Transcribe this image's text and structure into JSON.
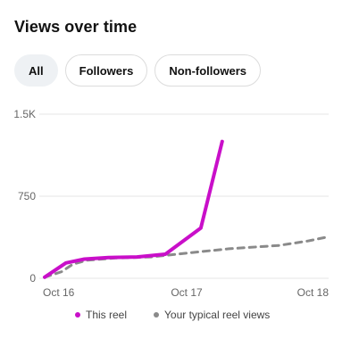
{
  "header": {
    "title": "Views over time"
  },
  "filters": [
    {
      "label": "All",
      "active": true
    },
    {
      "label": "Followers",
      "active": false
    },
    {
      "label": "Non-followers",
      "active": false
    }
  ],
  "colors": {
    "this_reel": "#c90fc9",
    "typical": "#8a8a8a",
    "grid": "#e6e6e6",
    "axis_text": "#666666"
  },
  "chart_data": {
    "type": "line",
    "y_ticks": [
      {
        "value": 0,
        "label": "0"
      },
      {
        "value": 750,
        "label": "750"
      },
      {
        "value": 1500,
        "label": "1.5K"
      }
    ],
    "ylim": [
      0,
      1500
    ],
    "x_ticks": [
      {
        "value": 0,
        "label": "Oct 16"
      },
      {
        "value": 1,
        "label": "Oct 17"
      },
      {
        "value": 2,
        "label": "Oct 18"
      }
    ],
    "xlim": [
      0,
      2
    ],
    "series": [
      {
        "name": "This reel",
        "style": "solid",
        "points": [
          [
            0.0,
            10
          ],
          [
            0.15,
            140
          ],
          [
            0.28,
            175
          ],
          [
            0.45,
            190
          ],
          [
            0.65,
            195
          ],
          [
            0.85,
            220
          ],
          [
            1.1,
            460
          ],
          [
            1.25,
            1250
          ]
        ]
      },
      {
        "name": "Your typical reel views",
        "style": "dashed",
        "points": [
          [
            0.0,
            10
          ],
          [
            0.12,
            60
          ],
          [
            0.2,
            130
          ],
          [
            0.3,
            165
          ],
          [
            0.5,
            185
          ],
          [
            0.75,
            195
          ],
          [
            1.0,
            230
          ],
          [
            1.3,
            270
          ],
          [
            1.65,
            300
          ],
          [
            1.85,
            340
          ],
          [
            2.0,
            380
          ]
        ]
      }
    ]
  },
  "legend": [
    {
      "label": "This reel"
    },
    {
      "label": "Your typical reel views"
    }
  ]
}
